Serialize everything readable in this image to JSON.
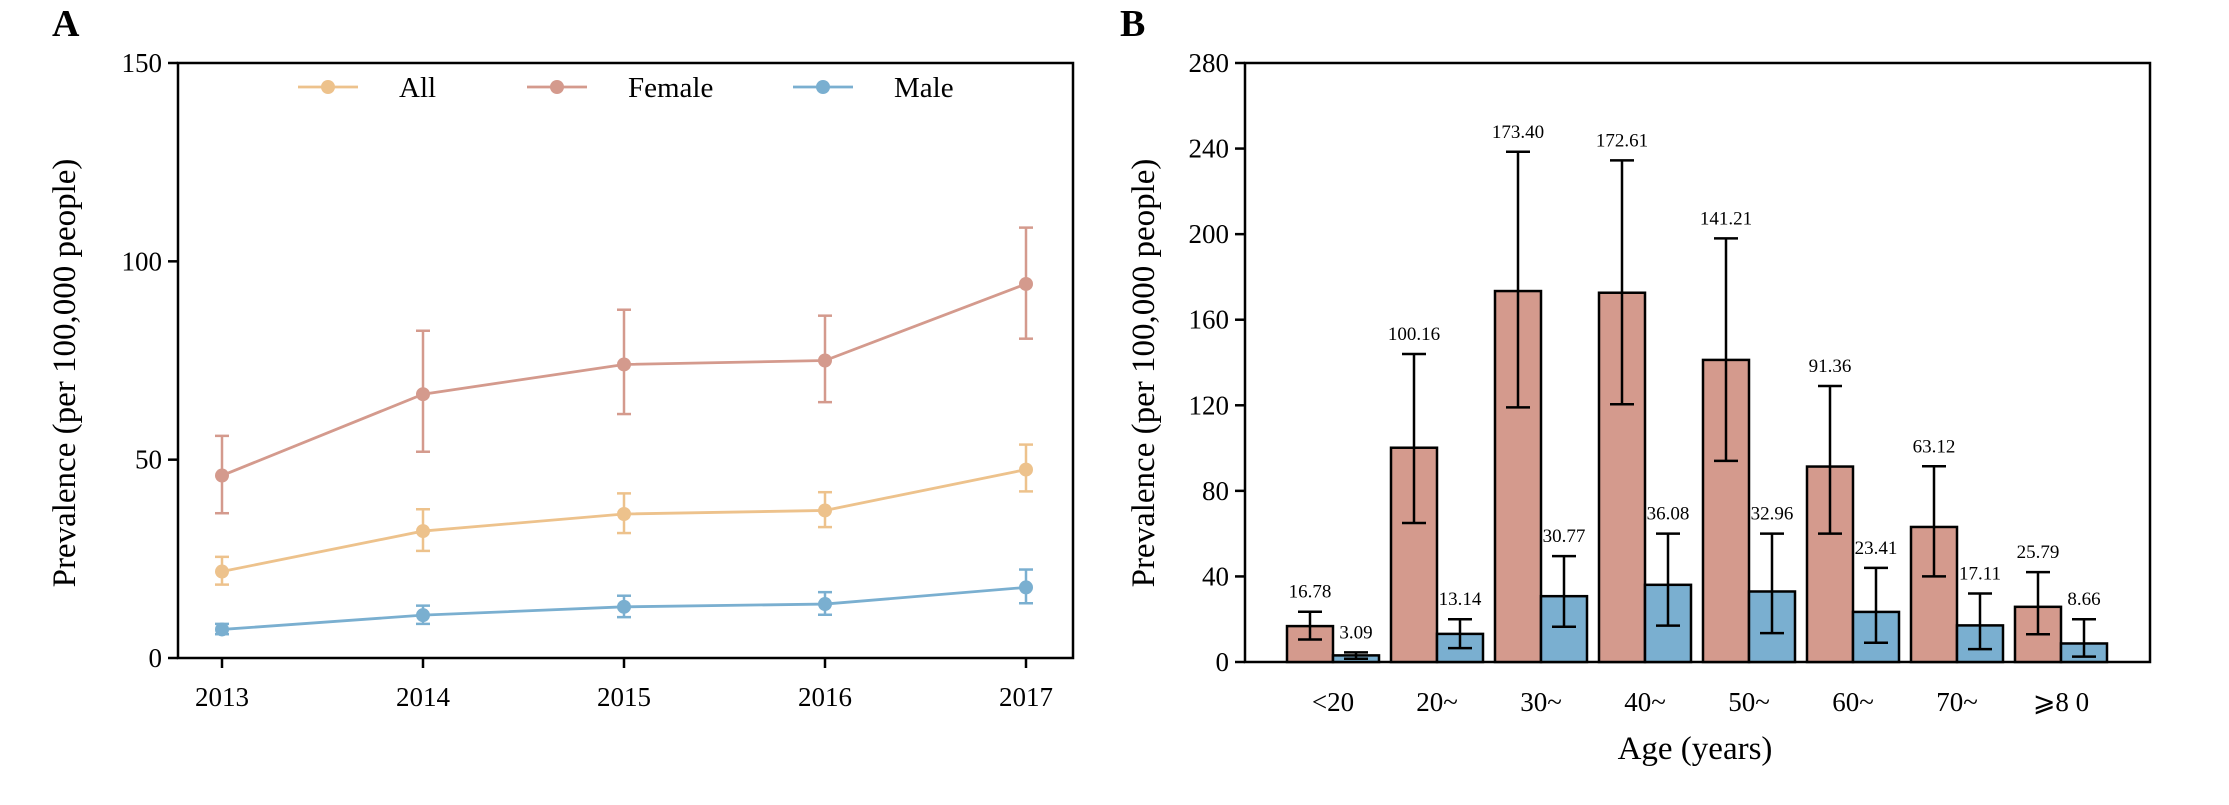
{
  "colors": {
    "all": "#EDC28C",
    "female": "#D49A8D",
    "male": "#7AAFD0",
    "axis": "#000000"
  },
  "chart_data": [
    {
      "panel": "A",
      "type": "line",
      "xlabel": "",
      "ylabel": "Prevalence (per 100,000 people)",
      "x": [
        "2013",
        "2014",
        "2015",
        "2016",
        "2017"
      ],
      "ylim": [
        0,
        150
      ],
      "yticks": [
        "0",
        "50",
        "100",
        "150"
      ],
      "legend_position": "top",
      "series": [
        {
          "name": "All",
          "color_key": "all",
          "values": [
            21.8,
            32.0,
            36.3,
            37.2,
            47.5
          ],
          "err_low": [
            18.5,
            27.0,
            31.5,
            33.0,
            42.0
          ],
          "err_high": [
            25.5,
            37.5,
            41.5,
            41.8,
            53.8
          ]
        },
        {
          "name": "Female",
          "color_key": "female",
          "values": [
            46.0,
            66.5,
            74.0,
            75.0,
            94.3
          ],
          "err_low": [
            36.5,
            52.0,
            61.5,
            64.5,
            80.5
          ],
          "err_high": [
            56.0,
            82.5,
            87.8,
            86.3,
            108.5
          ]
        },
        {
          "name": "Male",
          "color_key": "male",
          "values": [
            7.2,
            10.8,
            12.9,
            13.6,
            17.8
          ],
          "err_low": [
            6.0,
            8.6,
            10.3,
            10.9,
            13.8
          ],
          "err_high": [
            8.6,
            13.2,
            15.7,
            16.6,
            22.3
          ]
        }
      ]
    },
    {
      "panel": "B",
      "type": "bar",
      "xlabel": "Age (years)",
      "ylabel": "Prevalence (per 100,000 people)",
      "categories": [
        "<20",
        "20~",
        "30~",
        "40~",
        "50~",
        "60~",
        "70~",
        "⩾8 0"
      ],
      "ylim": [
        0,
        280
      ],
      "yticks": [
        "0",
        "40",
        "80",
        "120",
        "160",
        "200",
        "240",
        "280"
      ],
      "series": [
        {
          "name": "Female",
          "color_key": "female",
          "values": [
            16.78,
            100.16,
            173.4,
            172.61,
            141.21,
            91.36,
            63.12,
            25.79
          ],
          "labels": [
            "16.78",
            "100.16",
            "173.40",
            "172.61",
            "141.21",
            "91.36",
            "63.12",
            "25.79"
          ],
          "err_low": [
            10.5,
            65,
            119,
            120.5,
            94,
            60,
            40,
            13
          ],
          "err_high": [
            23.5,
            144,
            238.5,
            234.5,
            198,
            129,
            91.5,
            42
          ]
        },
        {
          "name": "Male",
          "color_key": "male",
          "values": [
            3.09,
            13.14,
            30.77,
            36.08,
            32.96,
            23.41,
            17.11,
            8.66
          ],
          "labels": [
            "3.09",
            "13.14",
            "30.77",
            "36.08",
            "32.96",
            "23.41",
            "17.11",
            "8.66"
          ],
          "err_low": [
            1.5,
            6.5,
            16.5,
            17,
            13.5,
            9,
            6,
            2.5
          ],
          "err_high": [
            4.5,
            20,
            49.5,
            60,
            60,
            44,
            32,
            20
          ]
        }
      ]
    }
  ]
}
